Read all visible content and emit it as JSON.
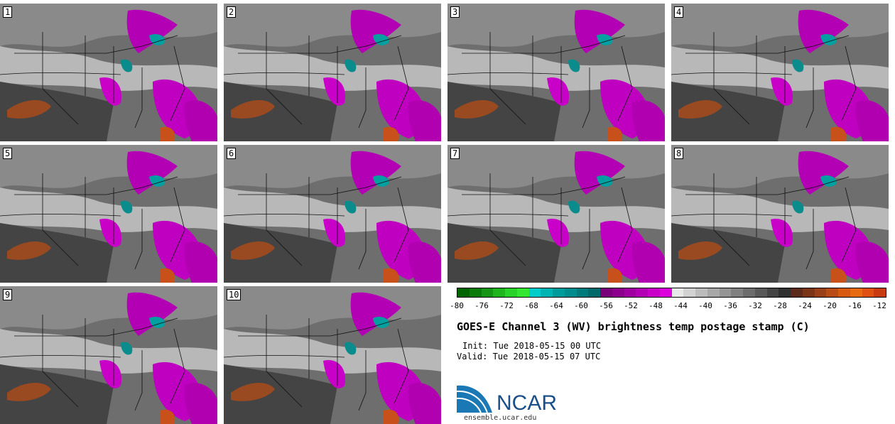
{
  "panels": [
    {
      "label": "1"
    },
    {
      "label": "2"
    },
    {
      "label": "3"
    },
    {
      "label": "4"
    },
    {
      "label": "5"
    },
    {
      "label": "6"
    },
    {
      "label": "7"
    },
    {
      "label": "8"
    },
    {
      "label": "9"
    },
    {
      "label": "10"
    }
  ],
  "colorbar": {
    "colors": [
      "#006400",
      "#0a7a0a",
      "#149614",
      "#1eb41e",
      "#28d228",
      "#32e632",
      "#00cccc",
      "#00b4b4",
      "#009c9c",
      "#008c8c",
      "#007a7a",
      "#006a6a",
      "#780078",
      "#8c008c",
      "#a000a0",
      "#b400b4",
      "#c800c8",
      "#dc00dc",
      "#e8e8e8",
      "#d2d2d2",
      "#bcbcbc",
      "#a8a8a8",
      "#949494",
      "#808080",
      "#6c6c6c",
      "#585858",
      "#444444",
      "#303030",
      "#5a2a1a",
      "#7a3418",
      "#9a4018",
      "#b84c14",
      "#d85a10",
      "#e86a10",
      "#e05010",
      "#c83a10"
    ],
    "ticks": [
      "-80",
      "-76",
      "-72",
      "-68",
      "-64",
      "-60",
      "-56",
      "-52",
      "-48",
      "-44",
      "-40",
      "-36",
      "-32",
      "-28",
      "-24",
      "-20",
      "-16",
      "-12"
    ]
  },
  "title": "GOES-E Channel 3 (WV) brightness temp postage stamp (C)",
  "init_line": "Init: Tue 2018-05-15 00 UTC",
  "valid_line": "Valid: Tue 2018-05-15 07 UTC",
  "logo_text": "NCAR",
  "url": "ensemble.ucar.edu"
}
